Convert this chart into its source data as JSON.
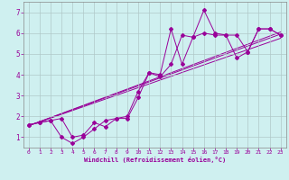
{
  "xlabel": "Windchill (Refroidissement éolien,°C)",
  "ylabel": "",
  "background_color": "#cff0f0",
  "line_color": "#990099",
  "grid_color": "#b0c8c8",
  "xlim": [
    -0.5,
    23.5
  ],
  "ylim": [
    0.5,
    7.5
  ],
  "xticks": [
    0,
    1,
    2,
    3,
    4,
    5,
    6,
    7,
    8,
    9,
    10,
    11,
    12,
    13,
    14,
    15,
    16,
    17,
    18,
    19,
    20,
    21,
    22,
    23
  ],
  "yticks": [
    1,
    2,
    3,
    4,
    5,
    6,
    7
  ],
  "line1_x": [
    0,
    1,
    2,
    3,
    4,
    5,
    6,
    7,
    8,
    9,
    10,
    11,
    12,
    13,
    14,
    15,
    16,
    17,
    18,
    19,
    20,
    21,
    22,
    23
  ],
  "line1_y": [
    1.6,
    1.7,
    1.8,
    1.0,
    0.7,
    1.0,
    1.4,
    1.8,
    1.9,
    2.0,
    3.2,
    4.1,
    4.0,
    6.2,
    4.5,
    5.8,
    7.1,
    6.0,
    5.9,
    4.8,
    5.1,
    6.2,
    6.2,
    5.9
  ],
  "line2_x": [
    0,
    1,
    2,
    3,
    4,
    5,
    6,
    7,
    8,
    9,
    10,
    11,
    12,
    13,
    14,
    15,
    16,
    17,
    18,
    19,
    20,
    21,
    22,
    23
  ],
  "line2_y": [
    1.6,
    1.7,
    1.8,
    1.9,
    1.0,
    1.1,
    1.7,
    1.5,
    1.9,
    1.9,
    2.9,
    4.1,
    3.9,
    4.5,
    5.9,
    5.8,
    6.0,
    5.9,
    5.9,
    5.9,
    5.1,
    6.2,
    6.2,
    5.9
  ],
  "line3_x": [
    0,
    23
  ],
  "line3_y": [
    1.55,
    5.75
  ],
  "line4_x": [
    0,
    23
  ],
  "line4_y": [
    1.55,
    6.05
  ],
  "line5_x": [
    0,
    23
  ],
  "line5_y": [
    1.55,
    5.95
  ]
}
